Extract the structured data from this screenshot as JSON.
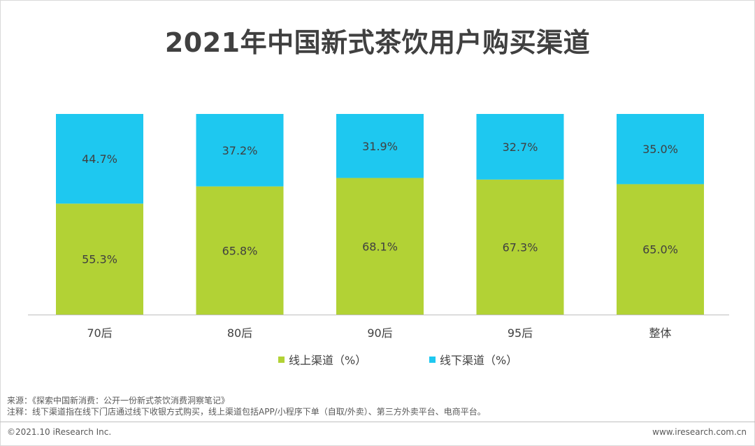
{
  "title": "2021年中国新式茶饮用户购买渠道",
  "chart_data": {
    "type": "stacked-bar",
    "title": "2021年中国新式茶饮用户购买渠道",
    "categories": [
      "70后",
      "80后",
      "90后",
      "95后",
      "整体"
    ],
    "series": [
      {
        "name": "线上渠道（%）",
        "color": "#b2d235",
        "values": [
          55.3,
          65.8,
          68.1,
          67.3,
          65.0
        ],
        "labels": [
          "55.3%",
          "65.8%",
          "68.1%",
          "67.3%",
          "65.0%"
        ]
      },
      {
        "name": "线下渠道（%）",
        "color": "#1ec8f0",
        "values": [
          44.7,
          37.2,
          31.9,
          32.7,
          35.0
        ],
        "labels": [
          "44.7%",
          "37.2%",
          "31.9%",
          "32.7%",
          "35.0%"
        ]
      }
    ],
    "ylim": [
      0,
      100
    ],
    "legend_position": "bottom-center"
  },
  "footer": {
    "source": "来源：《探索中国新消费：公开一份新式茶饮消费洞察笔记》",
    "note": "注释：线下渠道指在线下门店通过线下收银方式购买，线上渠道包括APP/小程序下单（自取/外卖）、第三方外卖平台、电商平台。",
    "copyright": "©2021.10 iResearch Inc.",
    "website": "www.iresearch.com.cn"
  }
}
